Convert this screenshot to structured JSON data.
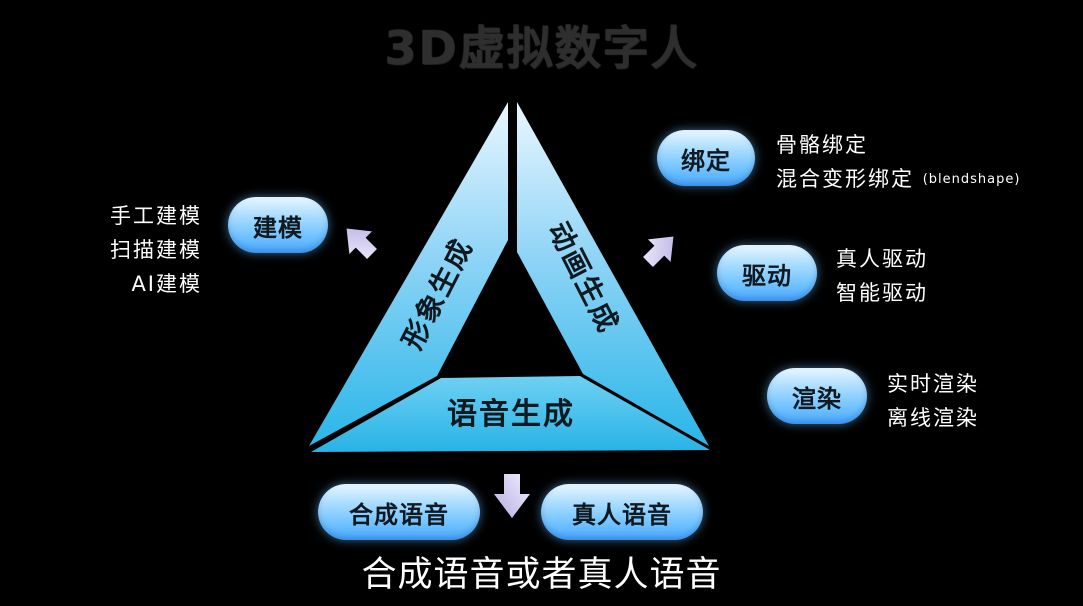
{
  "title": "3D虚拟数字人",
  "triangle": {
    "left_label": "形象生成",
    "right_label": "动画生成",
    "bottom_label": "语音生成"
  },
  "modeling": {
    "pill": "建模",
    "items": [
      "手工建模",
      "扫描建模",
      "AI建模"
    ]
  },
  "binding": {
    "pill": "绑定",
    "items": [
      "骨骼绑定",
      "混合变形绑定"
    ],
    "items_suffix": "(blendshape)"
  },
  "driving": {
    "pill": "驱动",
    "items": [
      "真人驱动",
      "智能驱动"
    ]
  },
  "rendering": {
    "pill": "渲染",
    "items": [
      "实时渲染",
      "离线渲染"
    ]
  },
  "voice": {
    "synth_pill": "合成语音",
    "real_pill": "真人语音",
    "caption": "合成语音或者真人语音"
  },
  "colors": {
    "triangle_top": "#eaf7ff",
    "triangle_mid": "#76cdf5",
    "triangle_bottom": "#2ab6e8",
    "arrow": "#d8d3f2"
  }
}
